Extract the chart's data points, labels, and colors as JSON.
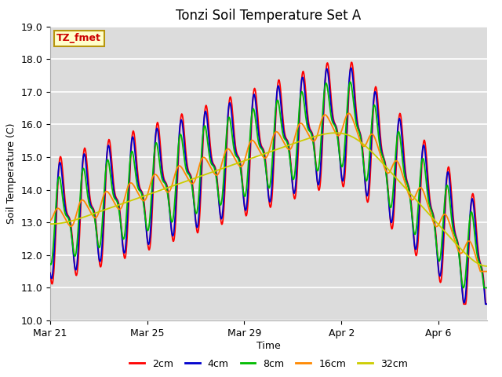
{
  "title": "Tonzi Soil Temperature Set A",
  "xlabel": "Time",
  "ylabel": "Soil Temperature (C)",
  "ylim": [
    10.0,
    19.0
  ],
  "yticks": [
    10.0,
    11.0,
    12.0,
    13.0,
    14.0,
    15.0,
    16.0,
    17.0,
    18.0,
    19.0
  ],
  "plot_bg_color": "#dcdcdc",
  "grid_color": "#ffffff",
  "legend_label": "TZ_fmet",
  "legend_bg": "#ffffcc",
  "legend_border": "#b8960c",
  "series_colors": [
    "#ff0000",
    "#0000cc",
    "#00bb00",
    "#ff8800",
    "#cccc00"
  ],
  "series_labels": [
    "2cm",
    "4cm",
    "8cm",
    "16cm",
    "32cm"
  ],
  "linewidth": 1.3,
  "title_fontsize": 12,
  "axis_label_fontsize": 9,
  "tick_fontsize": 9,
  "x_tick_labels": [
    "Mar 21",
    "Mar 25",
    "Mar 29",
    "Apr 2",
    "Apr 6"
  ],
  "x_tick_positions": [
    0,
    4,
    8,
    12,
    16
  ],
  "num_days": 18,
  "points_per_day": 48
}
